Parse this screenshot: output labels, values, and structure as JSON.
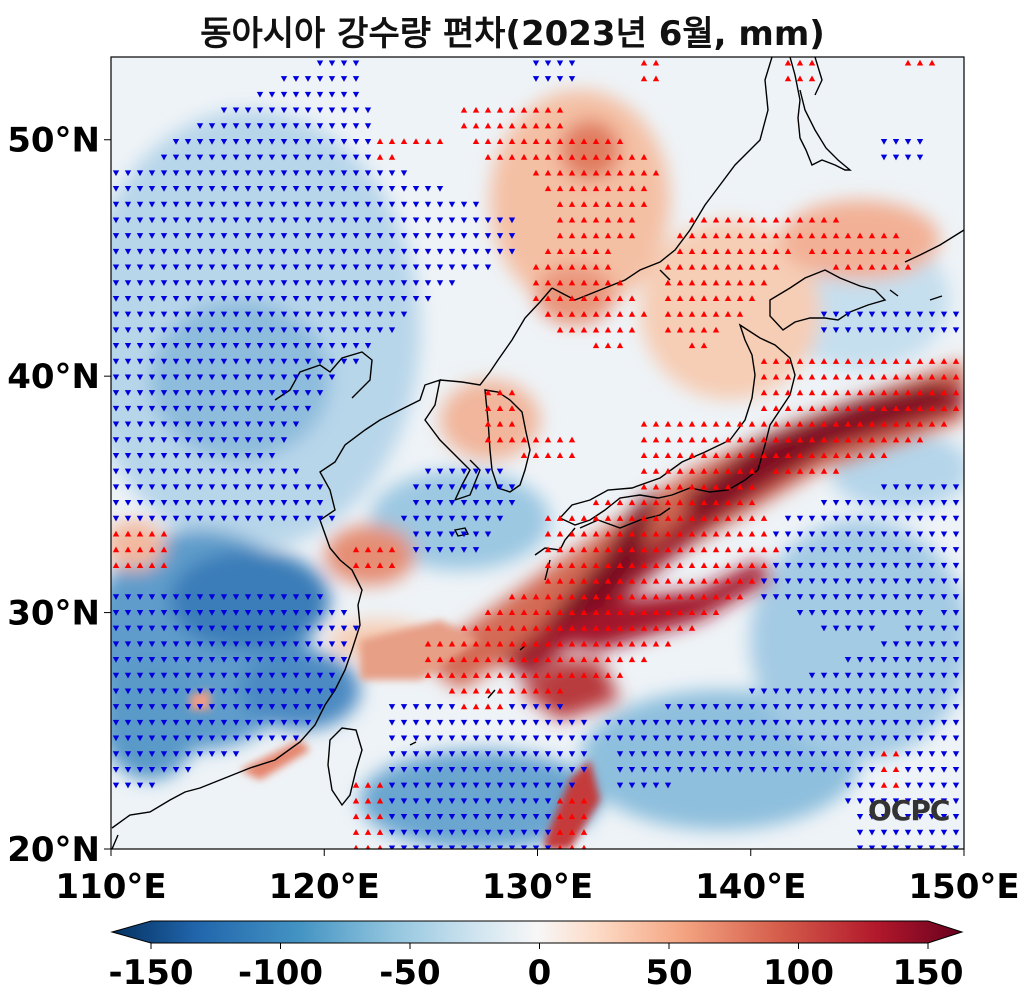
{
  "title": "동아시아 강수량 편차(2023년 6월, mm)",
  "logo_text": "OCPC",
  "map": {
    "lon_range": [
      110,
      150
    ],
    "lat_range": [
      20,
      53.5
    ],
    "x_ticks": [
      "110°E",
      "120°E",
      "130°E",
      "140°E",
      "150°E"
    ],
    "x_tick_values": [
      110,
      120,
      130,
      140,
      150
    ],
    "y_ticks": [
      "20°N",
      "30°N",
      "40°N",
      "50°N"
    ],
    "y_tick_values": [
      20,
      30,
      40,
      50
    ],
    "positive_marker_color": "#ff0000",
    "negative_marker_color": "#0000dd"
  },
  "colorbar": {
    "ticks": [
      "-150",
      "-100",
      "-50",
      "0",
      "50",
      "100",
      "150"
    ],
    "tick_values": [
      -150,
      -100,
      -50,
      0,
      50,
      100,
      150
    ],
    "colors": [
      "#053061",
      "#2166ac",
      "#4393c3",
      "#92c5de",
      "#d1e5f0",
      "#f7f7f7",
      "#fddbc7",
      "#f4a582",
      "#d6604d",
      "#b2182b",
      "#67001f"
    ]
  }
}
